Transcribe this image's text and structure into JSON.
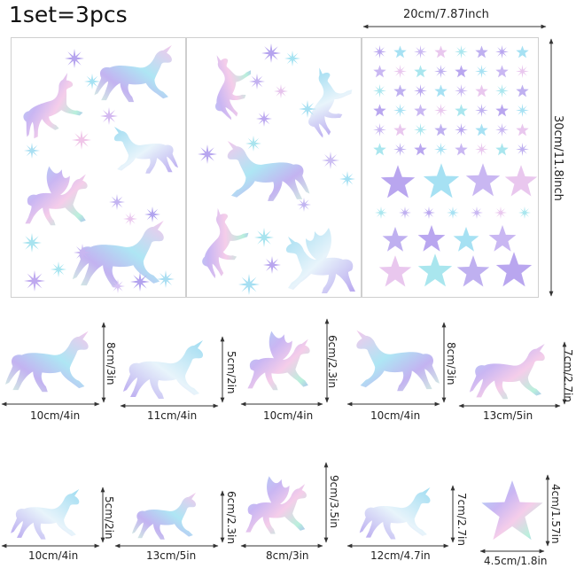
{
  "header": {
    "title": "1set=3pcs"
  },
  "sheet_dims": {
    "width_label": "20cm/7.87inch",
    "height_label": "30cm/11.8inch"
  },
  "row1": [
    {
      "w": "10cm/4in",
      "h": "8cm/3in"
    },
    {
      "w": "11cm/4in",
      "h": "5cm/2in"
    },
    {
      "w": "10cm/4in",
      "h": "6cm/2.3in"
    },
    {
      "w": "10cm/4in",
      "h": "8cm/3in"
    },
    {
      "w": "13cm/5in",
      "h": "7cm/2.7in"
    }
  ],
  "row2": [
    {
      "w": "10cm/4in",
      "h": "5cm/2in"
    },
    {
      "w": "13cm/5in",
      "h": "6cm/2.3in"
    },
    {
      "w": "8cm/3in",
      "h": "9cm/3.5in"
    },
    {
      "w": "12cm/4.7in",
      "h": "7cm/2.7in"
    },
    {
      "w": "4.5cm/1.8in",
      "h": "4cm/1.57in"
    }
  ],
  "colors": {
    "holo_a": "#b9a8f0",
    "holo_b": "#9fe3f2",
    "holo_c": "#f4c6ea",
    "holo_d": "#c6f0d8"
  },
  "icons": [
    "unicorn-icon",
    "pegasus-icon",
    "star-icon",
    "sparkle-icon"
  ]
}
